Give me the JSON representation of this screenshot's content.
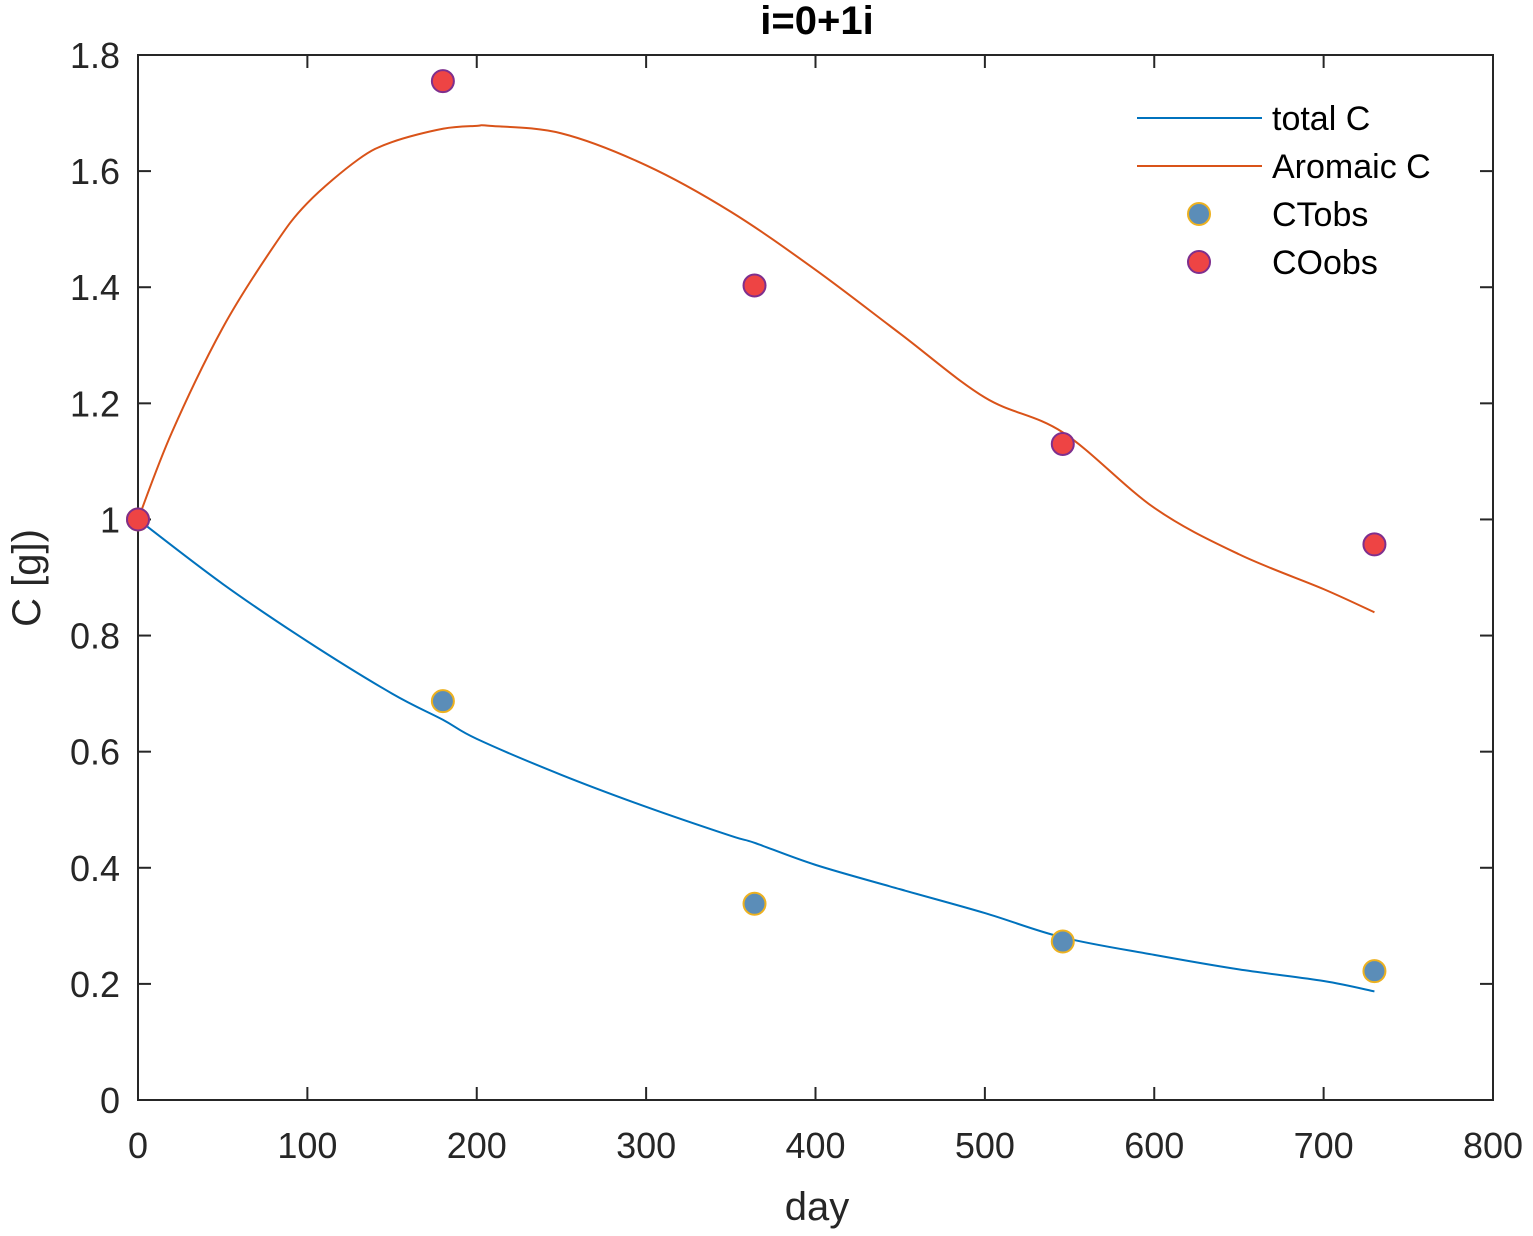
{
  "chart_data": {
    "type": "line",
    "title": "i=0+1i",
    "xlabel": "day",
    "ylabel": "C [g])",
    "xlim": [
      0,
      800
    ],
    "ylim": [
      0,
      1.8
    ],
    "xticks": [
      0,
      100,
      200,
      300,
      400,
      500,
      600,
      700,
      800
    ],
    "yticks": [
      0,
      0.2,
      0.4,
      0.6,
      0.8,
      1,
      1.2,
      1.4,
      1.6,
      1.8
    ],
    "xtick_labels": [
      "0",
      "100",
      "200",
      "300",
      "400",
      "500",
      "600",
      "700",
      "800"
    ],
    "ytick_labels": [
      "0",
      "0.2",
      "0.4",
      "0.6",
      "0.8",
      "1",
      "1.2",
      "1.4",
      "1.6",
      "1.8"
    ],
    "grid": false,
    "legend_position": "top-right",
    "series": [
      {
        "name": "total C",
        "kind": "line",
        "color": "#0072BD",
        "x": [
          0,
          50,
          100,
          150,
          180,
          200,
          250,
          300,
          350,
          364,
          400,
          450,
          500,
          546,
          600,
          650,
          700,
          730
        ],
        "y": [
          1.0,
          0.889,
          0.79,
          0.7,
          0.655,
          0.622,
          0.56,
          0.505,
          0.455,
          0.443,
          0.405,
          0.363,
          0.322,
          0.28,
          0.25,
          0.225,
          0.205,
          0.187
        ]
      },
      {
        "name": "Aromaic C",
        "kind": "line",
        "color": "#D95319",
        "x": [
          0,
          20,
          50,
          80,
          100,
          130,
          150,
          180,
          200,
          208,
          250,
          300,
          350,
          400,
          450,
          500,
          546,
          600,
          650,
          700,
          730
        ],
        "y": [
          1.0,
          1.15,
          1.33,
          1.47,
          1.545,
          1.62,
          1.65,
          1.673,
          1.678,
          1.678,
          1.665,
          1.61,
          1.53,
          1.43,
          1.32,
          1.21,
          1.15,
          1.02,
          0.94,
          0.88,
          0.84
        ]
      },
      {
        "name": "CTobs",
        "kind": "scatter",
        "fill": "#5B8DB8",
        "edge": "#EDB120",
        "x": [
          0,
          180,
          364,
          546,
          730
        ],
        "y": [
          1.0,
          0.687,
          0.338,
          0.273,
          0.222
        ]
      },
      {
        "name": "COobs",
        "kind": "scatter",
        "fill": "#EE4444",
        "edge": "#7E2F8E",
        "x": [
          0,
          180,
          364,
          546,
          730
        ],
        "y": [
          1.0,
          1.755,
          1.403,
          1.13,
          0.957
        ]
      }
    ]
  }
}
